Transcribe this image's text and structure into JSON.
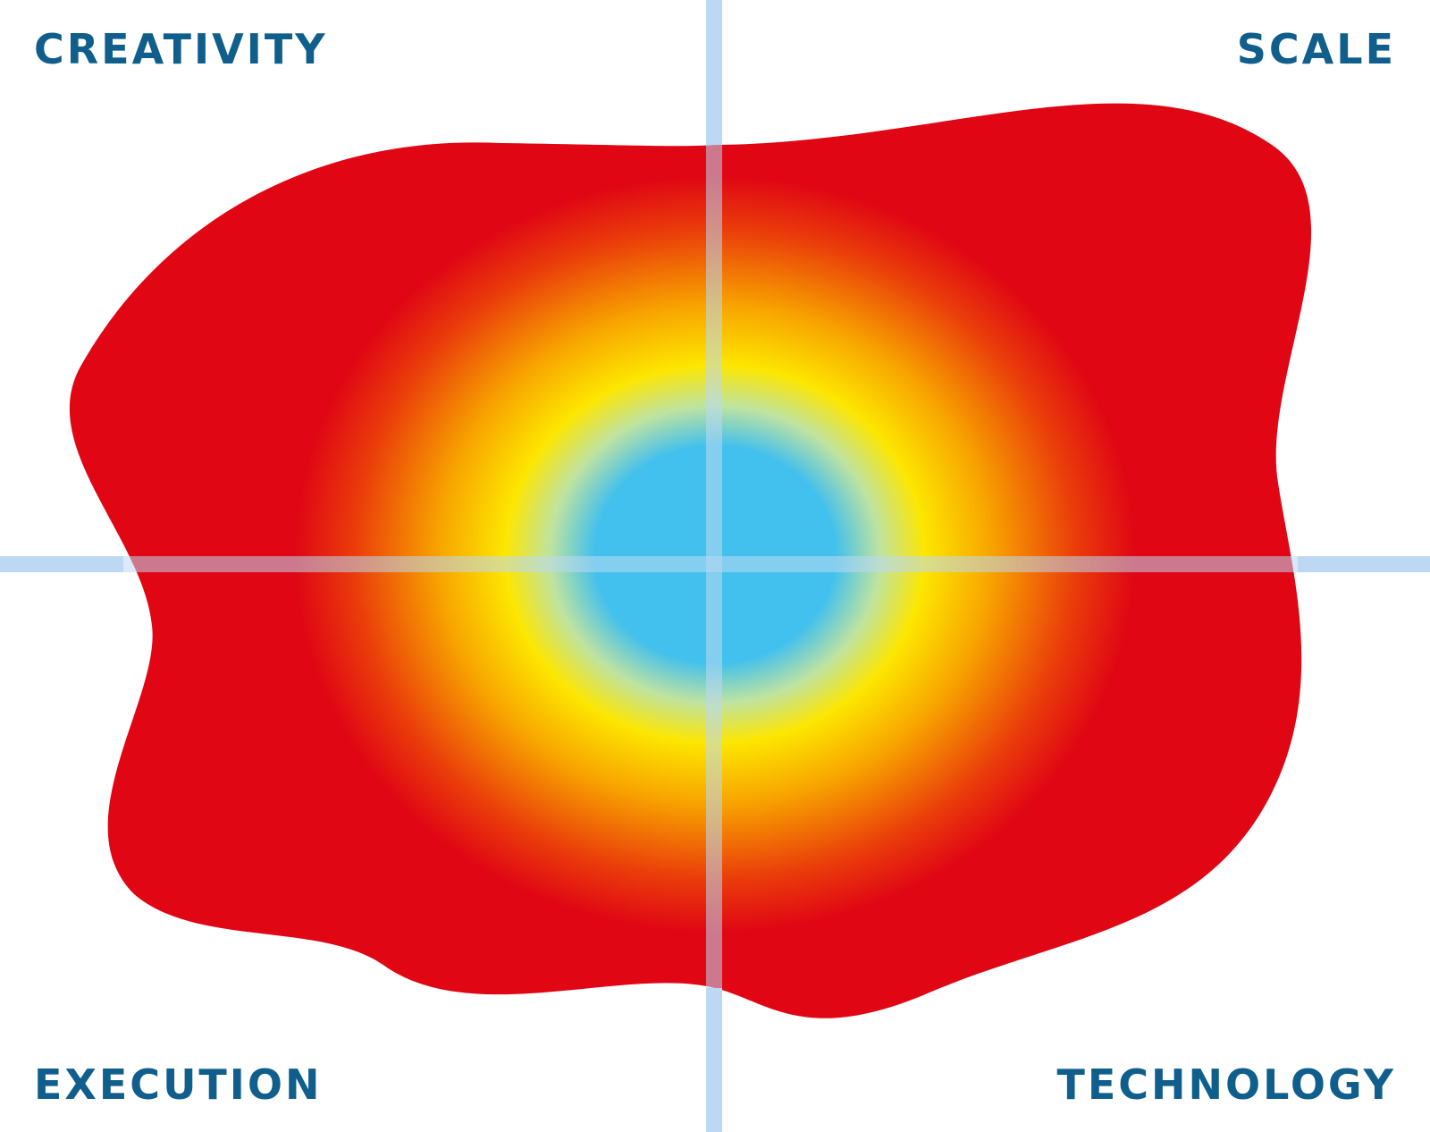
{
  "quadrants": {
    "top_left": "CREATIVITY",
    "top_right": "SCALE",
    "bottom_left": "EXECUTION",
    "bottom_right": "TECHNOLOGY"
  },
  "colors": {
    "label_text": "#0f5e8c",
    "axis_line": "#bcd8f2",
    "blob_outer": "#e00614",
    "blob_mid": "#f07a00",
    "blob_warm": "#fde600",
    "blob_core": "#42c0ee"
  }
}
